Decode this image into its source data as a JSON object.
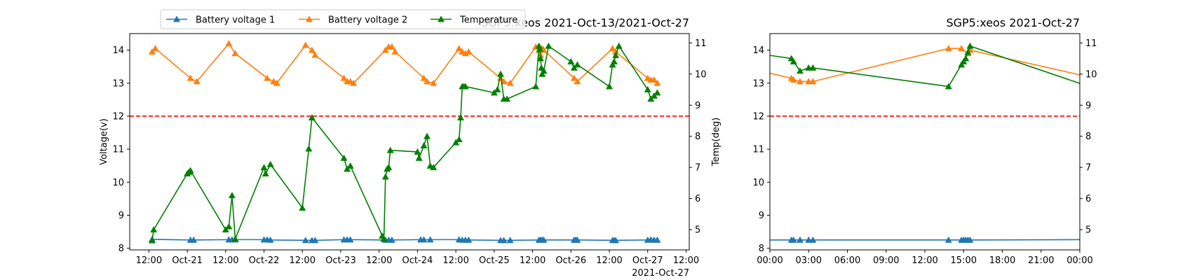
{
  "chart_data": [
    {
      "type": "line",
      "title": "SGP5:xeos 2021-Oct-13/2021-Oct-27",
      "ylabel_left": "Voltage(v)",
      "ylabel_right": "Temp(deg)",
      "x_offset_label": "2021-Oct-27",
      "xlim": [
        "2021-10-20T06:00",
        "2021-10-27T13:00"
      ],
      "ylim_left": [
        7.95,
        14.5
      ],
      "ylim_right": [
        4.35,
        11.3
      ],
      "x_ticks": [
        {
          "t": "2021-10-20T12:00",
          "label": "12:00"
        },
        {
          "t": "2021-10-21T00:00",
          "label": "Oct-21"
        },
        {
          "t": "2021-10-21T12:00",
          "label": "12:00"
        },
        {
          "t": "2021-10-22T00:00",
          "label": "Oct-22"
        },
        {
          "t": "2021-10-22T12:00",
          "label": "12:00"
        },
        {
          "t": "2021-10-23T00:00",
          "label": "Oct-23"
        },
        {
          "t": "2021-10-23T12:00",
          "label": "12:00"
        },
        {
          "t": "2021-10-24T00:00",
          "label": "Oct-24"
        },
        {
          "t": "2021-10-24T12:00",
          "label": "12:00"
        },
        {
          "t": "2021-10-25T00:00",
          "label": "Oct-25"
        },
        {
          "t": "2021-10-25T12:00",
          "label": "12:00"
        },
        {
          "t": "2021-10-26T00:00",
          "label": "Oct-26"
        },
        {
          "t": "2021-10-26T12:00",
          "label": "12:00"
        },
        {
          "t": "2021-10-27T00:00",
          "label": "Oct-27"
        },
        {
          "t": "2021-10-27T12:00",
          "label": "12:00"
        }
      ],
      "y_ticks_left": [
        8,
        9,
        10,
        11,
        12,
        13,
        14
      ],
      "y_ticks_right": [
        5,
        6,
        7,
        8,
        9,
        10,
        11
      ],
      "reference_line": {
        "y": 12,
        "color": "#ff0000",
        "style": "dashed"
      },
      "legend": {
        "placement": "upper-left",
        "entries": [
          "Battery voltage 1",
          "Battery voltage 2",
          "Temperature"
        ]
      },
      "series": [
        {
          "name": "Battery voltage 1",
          "axis": "left",
          "color": "#1f77b4",
          "marker": "triangle",
          "x": [
            "2021-10-20T13:00",
            "2021-10-21T01:00",
            "2021-10-21T02:00",
            "2021-10-21T13:00",
            "2021-10-21T14:00",
            "2021-10-21T15:00",
            "2021-10-22T00:00",
            "2021-10-22T01:00",
            "2021-10-22T02:00",
            "2021-10-22T13:00",
            "2021-10-22T15:00",
            "2021-10-22T16:00",
            "2021-10-23T01:00",
            "2021-10-23T02:00",
            "2021-10-23T03:00",
            "2021-10-23T14:00",
            "2021-10-23T15:00",
            "2021-10-23T16:00",
            "2021-10-24T01:00",
            "2021-10-24T02:00",
            "2021-10-24T04:00",
            "2021-10-24T13:00",
            "2021-10-24T14:00",
            "2021-10-24T15:00",
            "2021-10-24T16:00",
            "2021-10-25T02:00",
            "2021-10-25T03:00",
            "2021-10-25T05:00",
            "2021-10-25T14:00",
            "2021-10-25T14:30",
            "2021-10-25T15:00",
            "2021-10-25T15:30",
            "2021-10-26T01:00",
            "2021-10-26T01:30",
            "2021-10-26T02:00",
            "2021-10-26T13:00",
            "2021-10-26T13:30",
            "2021-10-26T14:00",
            "2021-10-27T00:00",
            "2021-10-27T01:00",
            "2021-10-27T02:00",
            "2021-10-27T03:00"
          ],
          "values": [
            8.27,
            8.25,
            8.25,
            8.26,
            8.26,
            8.26,
            8.26,
            8.26,
            8.25,
            8.24,
            8.24,
            8.24,
            8.26,
            8.26,
            8.26,
            8.25,
            8.25,
            8.25,
            8.26,
            8.26,
            8.26,
            8.26,
            8.25,
            8.25,
            8.25,
            8.24,
            8.24,
            8.24,
            8.25,
            8.25,
            8.25,
            8.25,
            8.25,
            8.25,
            8.25,
            8.24,
            8.24,
            8.24,
            8.25,
            8.26,
            8.25,
            8.25
          ]
        },
        {
          "name": "Battery voltage 2",
          "axis": "left",
          "color": "#ff7f0e",
          "marker": "triangle",
          "x": [
            "2021-10-20T13:00",
            "2021-10-20T14:00",
            "2021-10-21T01:00",
            "2021-10-21T03:00",
            "2021-10-21T13:00",
            "2021-10-21T15:00",
            "2021-10-22T01:00",
            "2021-10-22T03:00",
            "2021-10-22T04:00",
            "2021-10-22T13:00",
            "2021-10-22T15:00",
            "2021-10-22T16:00",
            "2021-10-23T01:00",
            "2021-10-23T02:00",
            "2021-10-23T03:00",
            "2021-10-23T04:00",
            "2021-10-23T14:00",
            "2021-10-23T15:00",
            "2021-10-23T16:00",
            "2021-10-23T17:00",
            "2021-10-24T02:00",
            "2021-10-24T03:00",
            "2021-10-24T05:00",
            "2021-10-24T13:00",
            "2021-10-24T14:00",
            "2021-10-24T15:00",
            "2021-10-24T16:00",
            "2021-10-25T02:00",
            "2021-10-25T03:00",
            "2021-10-25T05:00",
            "2021-10-25T13:00",
            "2021-10-25T14:00",
            "2021-10-25T14:30",
            "2021-10-25T15:00",
            "2021-10-25T15:30",
            "2021-10-26T01:00",
            "2021-10-26T02:00",
            "2021-10-26T13:00",
            "2021-10-26T14:00",
            "2021-10-27T00:00",
            "2021-10-27T01:00",
            "2021-10-27T02:00",
            "2021-10-27T03:00"
          ],
          "values": [
            13.95,
            14.05,
            13.15,
            13.05,
            14.2,
            13.9,
            13.15,
            13.05,
            13.0,
            14.15,
            14.0,
            13.85,
            13.15,
            13.05,
            13.05,
            13.0,
            14.0,
            14.1,
            14.1,
            13.95,
            13.15,
            13.05,
            13.0,
            14.05,
            13.95,
            13.9,
            13.95,
            13.15,
            13.05,
            13.0,
            14.1,
            14.0,
            13.85,
            14.05,
            14.0,
            13.15,
            13.05,
            14.05,
            13.95,
            13.15,
            13.1,
            13.1,
            13.0
          ]
        },
        {
          "name": "Temperature",
          "axis": "right",
          "color": "#008000",
          "marker": "triangle",
          "x": [
            "2021-10-20T13:00",
            "2021-10-20T13:30",
            "2021-10-21T00:00",
            "2021-10-21T00:30",
            "2021-10-21T01:00",
            "2021-10-21T12:00",
            "2021-10-21T13:00",
            "2021-10-21T14:00",
            "2021-10-21T15:00",
            "2021-10-22T00:00",
            "2021-10-22T00:30",
            "2021-10-22T02:00",
            "2021-10-22T12:00",
            "2021-10-22T14:00",
            "2021-10-22T15:00",
            "2021-10-23T01:00",
            "2021-10-23T02:00",
            "2021-10-23T03:00",
            "2021-10-23T13:00",
            "2021-10-23T13:30",
            "2021-10-23T14:00",
            "2021-10-23T14:30",
            "2021-10-23T15:00",
            "2021-10-23T15:30",
            "2021-10-24T00:00",
            "2021-10-24T00:30",
            "2021-10-24T02:00",
            "2021-10-24T03:00",
            "2021-10-24T04:00",
            "2021-10-24T05:00",
            "2021-10-24T12:00",
            "2021-10-24T13:00",
            "2021-10-24T13:30",
            "2021-10-24T14:00",
            "2021-10-24T14:30",
            "2021-10-24T15:00",
            "2021-10-25T00:00",
            "2021-10-25T01:00",
            "2021-10-25T02:00",
            "2021-10-25T03:00",
            "2021-10-25T04:00",
            "2021-10-25T13:00",
            "2021-10-25T14:00",
            "2021-10-25T14:15",
            "2021-10-25T14:30",
            "2021-10-25T14:45",
            "2021-10-25T15:00",
            "2021-10-25T15:30",
            "2021-10-25T17:00",
            "2021-10-26T00:00",
            "2021-10-26T01:00",
            "2021-10-26T02:00",
            "2021-10-26T12:00",
            "2021-10-26T13:00",
            "2021-10-26T13:30",
            "2021-10-26T14:00",
            "2021-10-26T15:00",
            "2021-10-27T00:00",
            "2021-10-27T01:00",
            "2021-10-27T02:00",
            "2021-10-27T03:00"
          ],
          "values": [
            4.65,
            5.0,
            6.8,
            6.85,
            6.9,
            5.0,
            5.1,
            6.1,
            4.7,
            7.0,
            6.8,
            7.1,
            5.7,
            7.6,
            8.6,
            7.3,
            6.95,
            7.05,
            4.8,
            4.7,
            6.7,
            6.95,
            7.0,
            7.55,
            7.5,
            7.3,
            7.7,
            8.0,
            7.05,
            7.0,
            7.8,
            7.9,
            8.6,
            9.6,
            9.6,
            9.6,
            9.4,
            9.5,
            10.0,
            9.2,
            9.2,
            9.6,
            10.9,
            10.8,
            10.5,
            10.2,
            10.0,
            10.1,
            10.9,
            10.4,
            10.2,
            10.3,
            9.6,
            10.3,
            10.4,
            10.6,
            10.9,
            9.5,
            9.2,
            9.3,
            9.4
          ]
        }
      ]
    },
    {
      "type": "line",
      "title": "SGP5:xeos 2021-Oct-27",
      "xlim": [
        "2021-10-27T00:00",
        "2021-10-28T00:00"
      ],
      "ylim_left": [
        7.95,
        14.5
      ],
      "ylim_right": [
        4.35,
        11.3
      ],
      "x_ticks": [
        {
          "t": "2021-10-27T00:00",
          "label": "00:00"
        },
        {
          "t": "2021-10-27T03:00",
          "label": "03:00"
        },
        {
          "t": "2021-10-27T06:00",
          "label": "06:00"
        },
        {
          "t": "2021-10-27T09:00",
          "label": "09:00"
        },
        {
          "t": "2021-10-27T12:00",
          "label": "12:00"
        },
        {
          "t": "2021-10-27T15:00",
          "label": "15:00"
        },
        {
          "t": "2021-10-27T18:00",
          "label": "18:00"
        },
        {
          "t": "2021-10-27T21:00",
          "label": "21:00"
        },
        {
          "t": "2021-10-28T00:00",
          "label": "00:00"
        }
      ],
      "y_ticks_left": [
        8,
        9,
        10,
        11,
        12,
        13,
        14
      ],
      "y_ticks_right": [
        5,
        6,
        7,
        8,
        9,
        10,
        11
      ],
      "reference_line": {
        "y": 12,
        "color": "#ff0000",
        "style": "dashed"
      },
      "series": [
        {
          "name": "Battery voltage 1",
          "axis": "left",
          "color": "#1f77b4",
          "marker": "triangle",
          "x": [
            "2021-10-27T00:00",
            "2021-10-27T01:40",
            "2021-10-27T01:50",
            "2021-10-27T02:20",
            "2021-10-27T03:00",
            "2021-10-27T03:20",
            "2021-10-27T13:50",
            "2021-10-27T14:50",
            "2021-10-27T15:00",
            "2021-10-27T15:10",
            "2021-10-27T15:20",
            "2021-10-27T15:30",
            "2021-10-28T00:00"
          ],
          "values": [
            8.25,
            8.25,
            8.25,
            8.25,
            8.25,
            8.25,
            8.25,
            8.25,
            8.25,
            8.25,
            8.25,
            8.25,
            8.26
          ],
          "markers_skip": [
            0,
            12
          ]
        },
        {
          "name": "Battery voltage 2",
          "axis": "left",
          "color": "#ff7f0e",
          "marker": "triangle",
          "x": [
            "2021-10-27T00:00",
            "2021-10-27T01:40",
            "2021-10-27T01:50",
            "2021-10-27T02:20",
            "2021-10-27T03:00",
            "2021-10-27T03:20",
            "2021-10-27T13:50",
            "2021-10-27T14:50",
            "2021-10-27T15:20",
            "2021-10-27T15:30",
            "2021-10-28T00:00"
          ],
          "values": [
            13.3,
            13.15,
            13.1,
            13.05,
            13.05,
            13.05,
            14.05,
            14.05,
            13.9,
            14.0,
            13.25
          ],
          "markers_skip": [
            0,
            10
          ]
        },
        {
          "name": "Temperature",
          "axis": "right",
          "color": "#008000",
          "marker": "triangle",
          "x": [
            "2021-10-27T00:00",
            "2021-10-27T01:40",
            "2021-10-27T01:50",
            "2021-10-27T02:20",
            "2021-10-27T03:00",
            "2021-10-27T03:20",
            "2021-10-27T13:50",
            "2021-10-27T14:50",
            "2021-10-27T15:00",
            "2021-10-27T15:10",
            "2021-10-27T15:20",
            "2021-10-27T15:30",
            "2021-10-28T00:00"
          ],
          "values": [
            10.6,
            10.5,
            10.4,
            10.1,
            10.2,
            10.2,
            9.6,
            10.3,
            10.4,
            10.5,
            10.7,
            10.9,
            9.7
          ],
          "markers_skip": [
            0,
            12
          ]
        }
      ]
    }
  ]
}
